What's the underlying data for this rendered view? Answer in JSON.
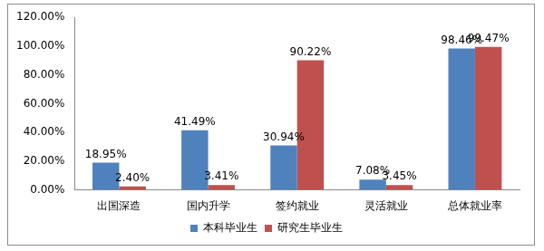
{
  "chart_data": {
    "type": "bar",
    "categories": [
      "出国深造",
      "国内升学",
      "签约就业",
      "灵活就业",
      "总体就业率"
    ],
    "series": [
      {
        "name": "本科毕业生",
        "color": "#4f81bd",
        "values": [
          18.95,
          41.49,
          30.94,
          7.08,
          98.46
        ],
        "value_labels": [
          "18.95%",
          "41.49%",
          "30.94%",
          "7.08%",
          "98.46%"
        ]
      },
      {
        "name": "研究生毕业生",
        "color": "#c0504d",
        "values": [
          2.4,
          3.41,
          90.22,
          3.45,
          99.47
        ],
        "value_labels": [
          "2.40%",
          "3.41%",
          "90.22%",
          "3.45%",
          "99.47%"
        ]
      }
    ],
    "ylim": [
      0,
      120
    ],
    "yticks": [
      {
        "value": 0,
        "label": "0.00%"
      },
      {
        "value": 20,
        "label": "20.00%"
      },
      {
        "value": 40,
        "label": "40.00%"
      },
      {
        "value": 60,
        "label": "60.00%"
      },
      {
        "value": 80,
        "label": "80.00%"
      },
      {
        "value": 100,
        "label": "100.00%"
      },
      {
        "value": 120,
        "label": "120.00%"
      }
    ],
    "grid": false,
    "legend": "bottom",
    "data_labels": true
  }
}
